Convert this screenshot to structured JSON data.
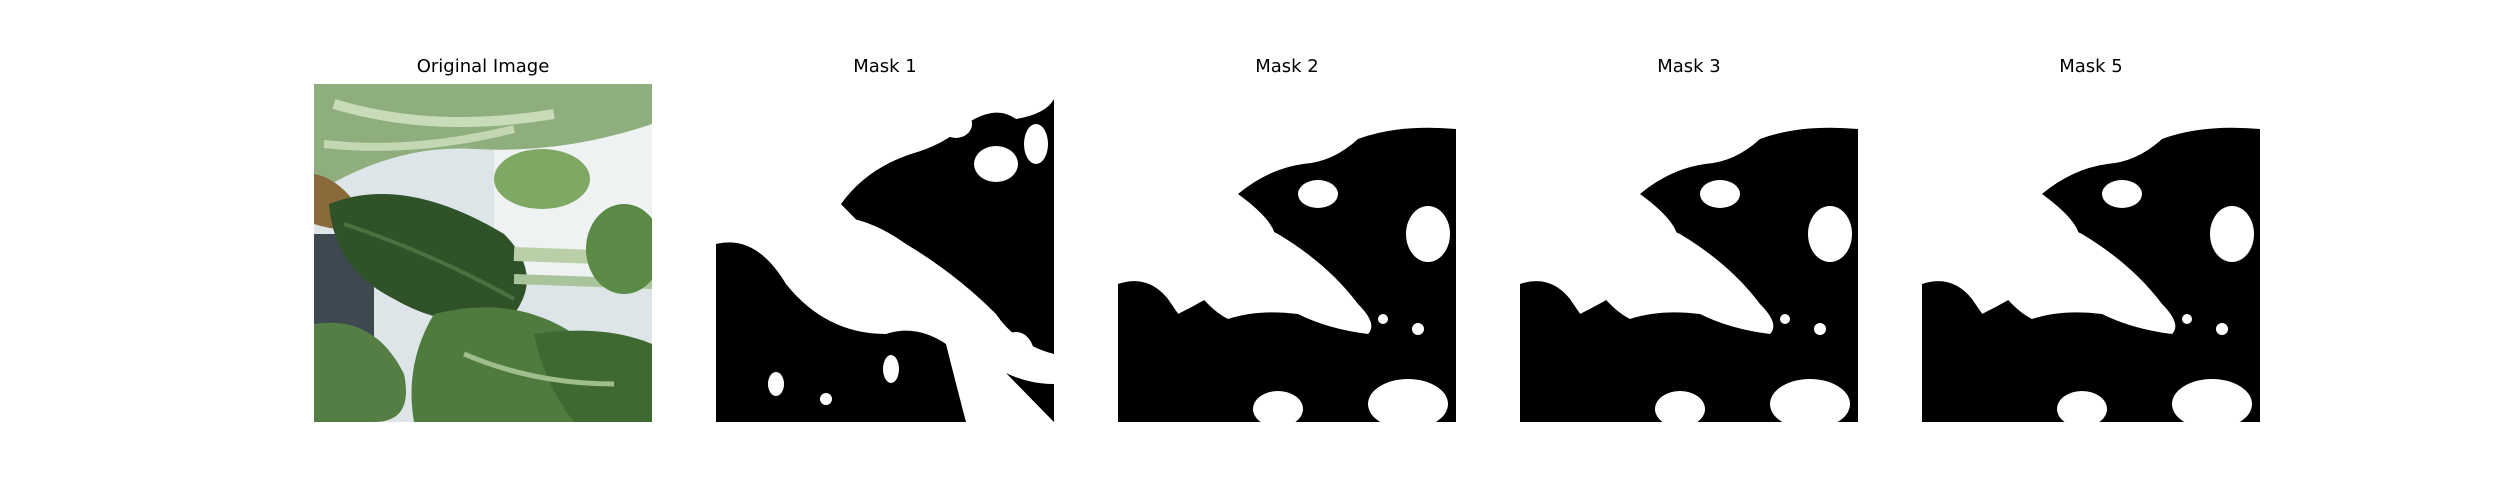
{
  "panels": [
    {
      "title": "Original Image"
    },
    {
      "title": "Mask 1"
    },
    {
      "title": "Mask 2"
    },
    {
      "title": "Mask 3"
    },
    {
      "title": "Mask 5"
    }
  ],
  "colors": {
    "background": "#ffffff",
    "mask_foreground": "#ffffff",
    "mask_background": "#000000",
    "leaf_dark": "#2f4f2a",
    "leaf_light": "#a9c39a",
    "backdrop": "#dfe6ea"
  }
}
